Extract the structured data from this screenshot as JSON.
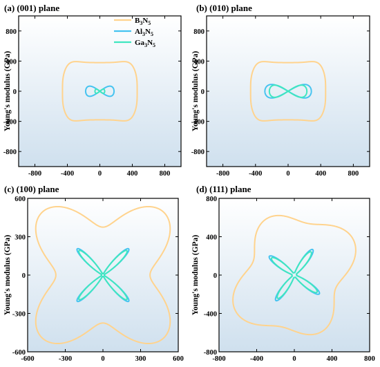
{
  "figure": {
    "ylabel": "Young's modulus (GPa)"
  },
  "legend": {
    "items": [
      {
        "base": "B",
        "sub1": "3",
        "mid": "N",
        "sub2": "5",
        "color": "#FFD38D"
      },
      {
        "base": "Al",
        "sub1": "3",
        "mid": "N",
        "sub2": "5",
        "color": "#45C3F0"
      },
      {
        "base": "Ga",
        "sub1": "3",
        "mid": "N",
        "sub2": "5",
        "color": "#3FE6C0"
      }
    ]
  },
  "colors": {
    "B3N5": "#FFD38D",
    "Al3N5": "#45C3F0",
    "Ga3N5": "#3FE6C0",
    "gradient_top": "#FFFFFF",
    "gradient_bottom": "#CFE0EE"
  },
  "chart_data": [
    {
      "type": "line",
      "title": "(a) (001) plane",
      "ylabel": "Young's modulus (GPa)",
      "xlim": [
        -1000,
        1000
      ],
      "ylim": [
        -1000,
        1000
      ],
      "xticks": [
        -800,
        -400,
        0,
        400,
        800
      ],
      "yticks": [
        -800,
        -400,
        0,
        400,
        800
      ],
      "series": [
        {
          "name": "B3N5",
          "shape": "peanut",
          "rx": 460,
          "ry_axis": 380,
          "ry_peak": 440
        },
        {
          "name": "Al3N5",
          "shape": "figure-eight",
          "rx": 175,
          "ry": 75
        },
        {
          "name": "Ga3N5",
          "shape": "figure-eight",
          "rx": 60,
          "ry": 30
        }
      ]
    },
    {
      "type": "line",
      "title": "(b) (010) plane",
      "ylabel": "Young's modulus (GPa)",
      "xlim": [
        -1000,
        1000
      ],
      "ylim": [
        -1000,
        1000
      ],
      "xticks": [
        -800,
        -400,
        0,
        400,
        800
      ],
      "yticks": [
        -800,
        -400,
        0,
        400,
        800
      ],
      "series": [
        {
          "name": "B3N5",
          "shape": "peanut",
          "rx": 460,
          "ry_axis": 380,
          "ry_peak": 440
        },
        {
          "name": "Al3N5",
          "shape": "figure-eight",
          "rx": 285,
          "ry": 100
        },
        {
          "name": "Ga3N5",
          "shape": "figure-eight",
          "rx": 230,
          "ry": 90
        }
      ]
    },
    {
      "type": "line",
      "title": "(c) (100) plane",
      "ylabel": "Young's modulus (GPa)",
      "xlim": [
        -600,
        600
      ],
      "ylim": [
        -600,
        600
      ],
      "xticks": [
        -600,
        -300,
        0,
        300,
        600
      ],
      "yticks": [
        -600,
        -300,
        0,
        300,
        600
      ],
      "series": [
        {
          "name": "B3N5",
          "shape": "four-lobe",
          "r_axis": 375,
          "r_diag": 690
        },
        {
          "name": "Al3N5",
          "shape": "x-cross",
          "r_diag": 290,
          "width": 0.22
        },
        {
          "name": "Ga3N5",
          "shape": "x-cross",
          "r_diag": 270,
          "width": 0.18
        }
      ]
    },
    {
      "type": "line",
      "title": "(d) (111) plane",
      "ylabel": "Young's modulus (GPa)",
      "xlim": [
        -800,
        800
      ],
      "ylim": [
        -800,
        800
      ],
      "xticks": [
        -800,
        -400,
        0,
        400,
        800
      ],
      "yticks": [
        -800,
        -400,
        0,
        400,
        800
      ],
      "series": [
        {
          "name": "B3N5",
          "shape": "tilted-lobe",
          "r_base": 600,
          "r_var": 90
        },
        {
          "name": "Al3N5",
          "shape": "tilted-cross",
          "r_diag": 330,
          "width": 0.3
        },
        {
          "name": "Ga3N5",
          "shape": "tilted-cross",
          "r_diag": 300,
          "width": 0.24
        }
      ]
    }
  ]
}
